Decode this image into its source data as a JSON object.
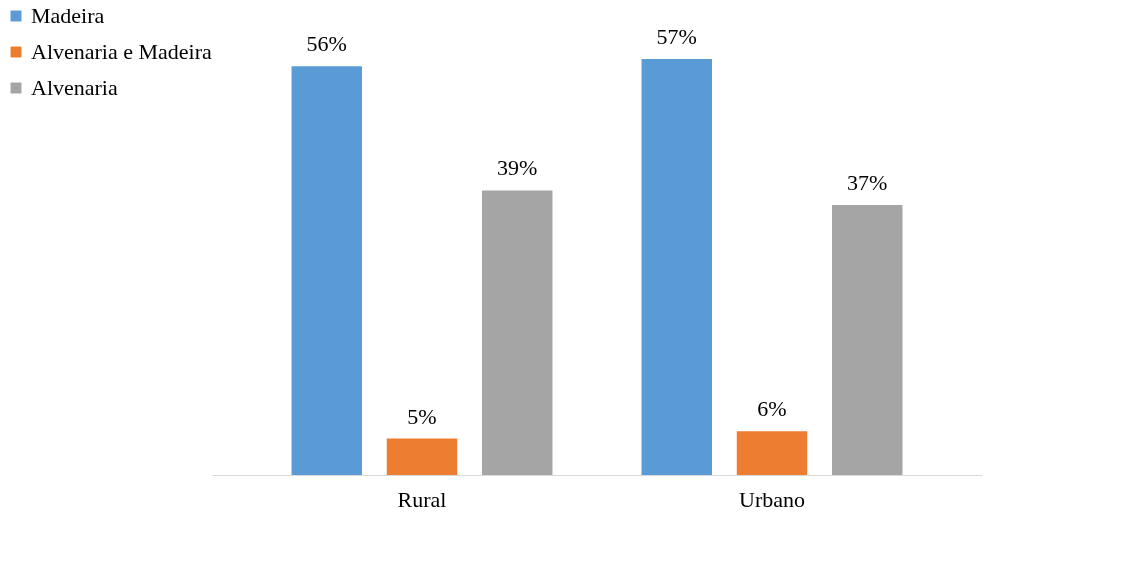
{
  "chart_data": {
    "type": "bar",
    "categories": [
      "Rural",
      "Urbano"
    ],
    "series": [
      {
        "name": "Madeira",
        "color": "#5b9bd5",
        "values": [
          56,
          57
        ],
        "value_labels": [
          "56%",
          "57%"
        ]
      },
      {
        "name": "Alvenaria e Madeira",
        "color": "#ed7d31",
        "values": [
          5,
          6
        ],
        "value_labels": [
          "5%",
          "6%"
        ]
      },
      {
        "name": "Alvenaria",
        "color": "#a5a5a5",
        "values": [
          39,
          37
        ],
        "value_labels": [
          "39%",
          "37%"
        ]
      }
    ],
    "legend": "left",
    "grid": false
  }
}
